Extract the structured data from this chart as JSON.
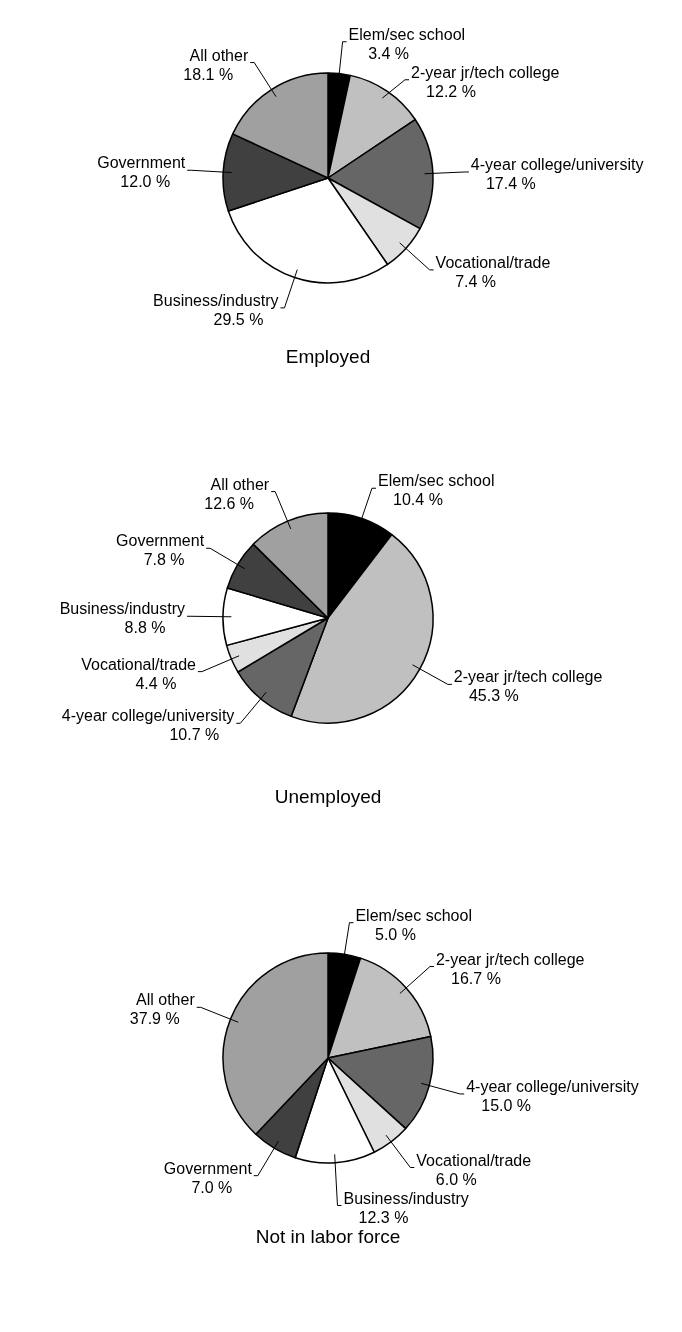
{
  "chart_data": [
    {
      "type": "pie",
      "title": "Employed",
      "categories": [
        "Elem/sec school",
        "2-year jr/tech college",
        "4-year college/university",
        "Vocational/trade",
        "Business/industry",
        "Government",
        "All other"
      ],
      "values": [
        3.4,
        12.2,
        17.4,
        7.4,
        29.5,
        12.0,
        18.1
      ],
      "colors": [
        "#000000",
        "#c0c0c0",
        "#666666",
        "#e0e0e0",
        "#ffffff",
        "#404040",
        "#a0a0a0"
      ],
      "value_labels": [
        "3.4 %",
        "12.2 %",
        "17.4 %",
        "7.4 %",
        "29.5 %",
        "12.0 %",
        "18.1 %"
      ]
    },
    {
      "type": "pie",
      "title": "Unemployed",
      "categories": [
        "Elem/sec school",
        "2-year jr/tech college",
        "4-year college/university",
        "Vocational/trade",
        "Business/industry",
        "Government",
        "All other"
      ],
      "values": [
        10.4,
        45.3,
        10.7,
        4.4,
        8.8,
        7.8,
        12.6
      ],
      "colors": [
        "#000000",
        "#c0c0c0",
        "#666666",
        "#e0e0e0",
        "#ffffff",
        "#404040",
        "#a0a0a0"
      ],
      "value_labels": [
        "10.4 %",
        "45.3 %",
        "10.7 %",
        "4.4 %",
        "8.8 %",
        "7.8 %",
        "12.6 %"
      ]
    },
    {
      "type": "pie",
      "title": "Not in labor force",
      "categories": [
        "Elem/sec school",
        "2-year jr/tech college",
        "4-year college/university",
        "Vocational/trade",
        "Business/industry",
        "Government",
        "All other"
      ],
      "values": [
        5.0,
        16.7,
        15.0,
        6.0,
        12.3,
        7.0,
        37.9
      ],
      "colors": [
        "#000000",
        "#c0c0c0",
        "#666666",
        "#e0e0e0",
        "#ffffff",
        "#404040",
        "#a0a0a0"
      ],
      "value_labels": [
        "5.0 %",
        "16.7 %",
        "15.0 %",
        "6.0 %",
        "12.3 %",
        "7.0 %",
        "37.9 %"
      ]
    }
  ]
}
